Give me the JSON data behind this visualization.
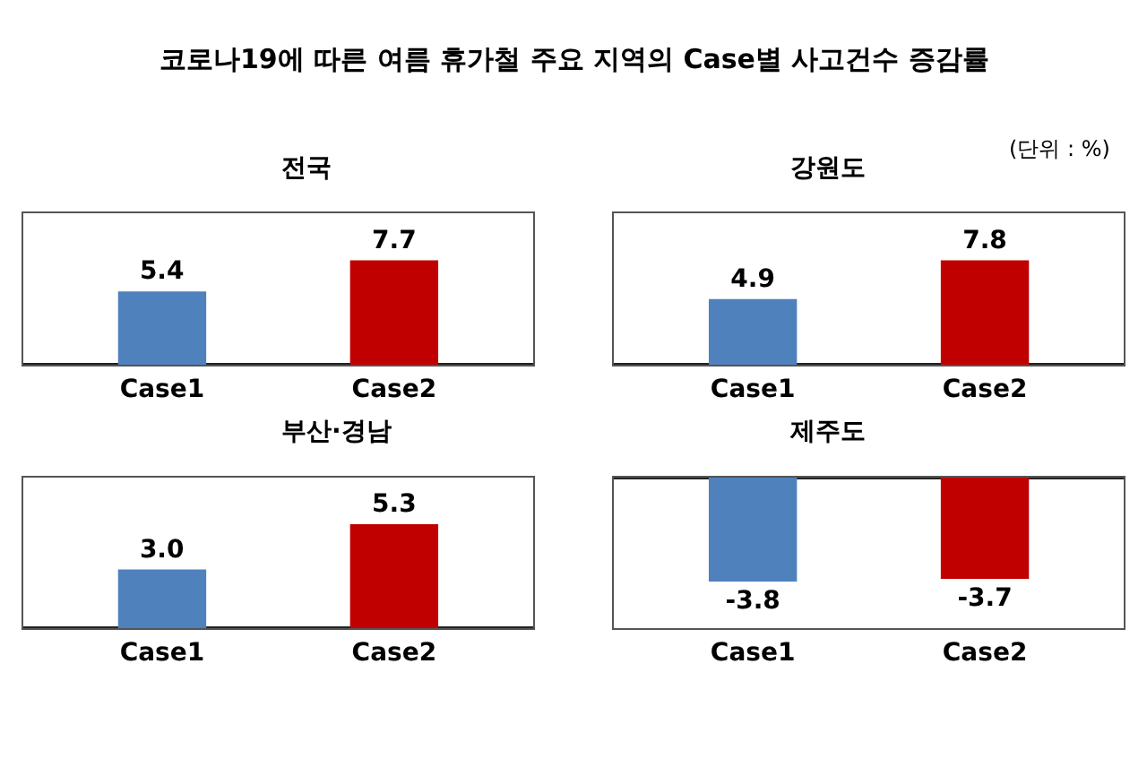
{
  "chart_data": [
    {
      "type": "other",
      "title": "코로나19에 따른 여름 휴가철 주요 지역의 Case별 사고건수 증감률",
      "annotations": [
        "(단위 : %)"
      ]
    },
    {
      "type": "bar",
      "title": "전국",
      "categories": [
        "Case1",
        "Case2"
      ],
      "colors": [
        "#4f81bd",
        "#c00000"
      ],
      "values": [
        5.4,
        7.7
      ],
      "data_labels": true,
      "tick_labels": "x"
    },
    {
      "type": "bar",
      "title": "강원도",
      "categories": [
        "Case1",
        "Case2"
      ],
      "colors": [
        "#4f81bd",
        "#c00000"
      ],
      "values": [
        4.9,
        7.8
      ],
      "data_labels": true,
      "tick_labels": "x"
    },
    {
      "type": "bar",
      "title": "부산·경남",
      "categories": [
        "Case1",
        "Case2"
      ],
      "colors": [
        "#4f81bd",
        "#c00000"
      ],
      "values": [
        3.0,
        5.3
      ],
      "value_labels": [
        "3.0",
        "5.3"
      ],
      "tick_labels": "x"
    },
    {
      "type": "bar",
      "title": "제주도",
      "categories": [
        "Case1",
        "Case2"
      ],
      "colors": [
        "#4f81bd",
        "#c00000"
      ],
      "values": [
        -3.8,
        -3.7
      ],
      "data_labels": true,
      "tick_labels": "x"
    }
  ]
}
